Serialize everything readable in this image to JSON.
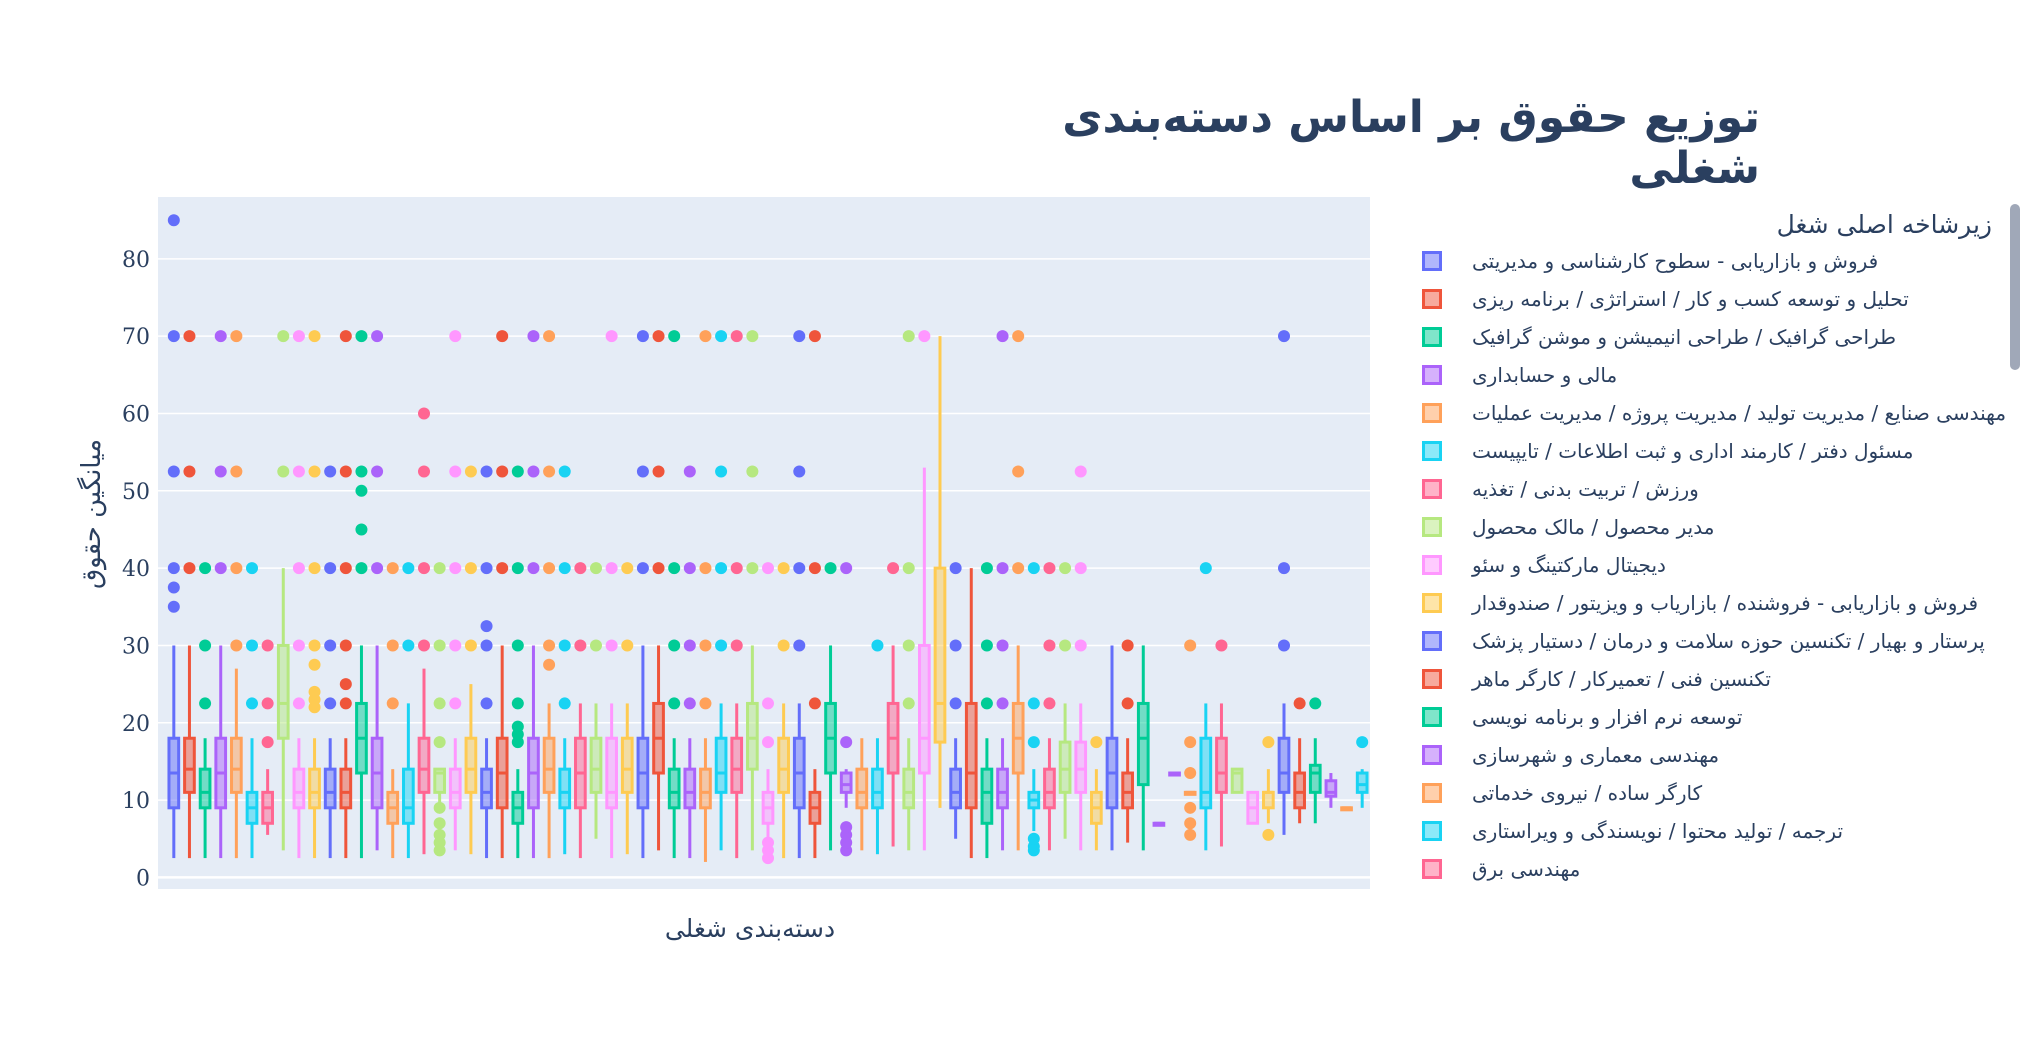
{
  "chart_data": {
    "type": "box",
    "title": "توزیع حقوق بر اساس دسته‌بندی شغلی",
    "xlabel": "دسته‌بندی شغلی",
    "ylabel": "میانگین حقوق",
    "ylim": [
      -1.5,
      88
    ],
    "yticks": [
      0,
      10,
      20,
      30,
      40,
      50,
      60,
      70,
      80
    ],
    "grid": true,
    "legend_title": "زیرشاخه اصلی شغل",
    "legend_placement": "right",
    "colors": [
      "#636efa",
      "#ef553b",
      "#00cc96",
      "#ab63fa",
      "#ffa15a",
      "#19d3f3",
      "#ff6692",
      "#b6e880",
      "#ff97ff",
      "#fecb52"
    ],
    "series": [
      {
        "name": "فروش و بازاریابی - سطوح کارشناسی و مدیریتی",
        "color": "#636efa"
      },
      {
        "name": "تحلیل و توسعه کسب و کار / استراتژی / برنامه ریزی",
        "color": "#ef553b"
      },
      {
        "name": "طراحی گرافیک / طراحی انیمیشن و موشن گرافیک",
        "color": "#00cc96"
      },
      {
        "name": "مالی و حسابداری",
        "color": "#ab63fa"
      },
      {
        "name": "مهندسی صنایع / مدیریت تولید / مدیریت پروژه / مدیریت عملیات",
        "color": "#ffa15a"
      },
      {
        "name": "مسئول دفتر / کارمند اداری و ثبت اطلاعات / تایپیست",
        "color": "#19d3f3"
      },
      {
        "name": "ورزش / تربیت بدنی / تغذیه",
        "color": "#ff6692"
      },
      {
        "name": "مدیر محصول / مالک محصول",
        "color": "#b6e880"
      },
      {
        "name": "دیجیتال مارکتینگ و سئو",
        "color": "#ff97ff"
      },
      {
        "name": "فروش و بازاریابی - فروشنده / بازاریاب و ویزیتور / صندوقدار",
        "color": "#fecb52"
      },
      {
        "name": "پرستار و بهیار / تکنسین حوزه سلامت و درمان / دستیار پزشک",
        "color": "#636efa"
      },
      {
        "name": "تکنسین فنی / تعمیرکار / کارگر ماهر",
        "color": "#ef553b"
      },
      {
        "name": "توسعه نرم افزار و برنامه نویسی",
        "color": "#00cc96"
      },
      {
        "name": "مهندسی معماری و شهرسازی",
        "color": "#ab63fa"
      },
      {
        "name": "کارگر ساده / نیروی خدماتی",
        "color": "#ffa15a"
      },
      {
        "name": "ترجمه / تولید محتوا / نویسندگی و ویراستاری",
        "color": "#19d3f3"
      },
      {
        "name": "مهندسی برق",
        "color": "#ff6692"
      }
    ],
    "boxes": [
      {
        "c": 0,
        "min": 2.5,
        "q1": 9,
        "med": 13.5,
        "q3": 18,
        "max": 30,
        "out": [
          35,
          37.5,
          40,
          52.5,
          70,
          85
        ]
      },
      {
        "c": 1,
        "min": 2.5,
        "q1": 11,
        "med": 14,
        "q3": 18,
        "max": 30,
        "out": [
          40,
          52.5,
          70
        ]
      },
      {
        "c": 2,
        "min": 2.5,
        "q1": 9,
        "med": 11,
        "q3": 14,
        "max": 18,
        "out": [
          22.5,
          30,
          40
        ]
      },
      {
        "c": 3,
        "min": 2.5,
        "q1": 9,
        "med": 13.5,
        "q3": 18,
        "max": 30,
        "out": [
          40,
          52.5,
          70
        ]
      },
      {
        "c": 4,
        "min": 2.5,
        "q1": 11,
        "med": 14,
        "q3": 18,
        "max": 27,
        "out": [
          30,
          40,
          52.5,
          70
        ]
      },
      {
        "c": 5,
        "min": 2.5,
        "q1": 7,
        "med": 9,
        "q3": 11,
        "max": 18,
        "out": [
          22.5,
          30,
          40
        ]
      },
      {
        "c": 6,
        "min": 5.5,
        "q1": 7,
        "med": 9,
        "q3": 11,
        "max": 14,
        "out": [
          17.5,
          22.5,
          30
        ]
      },
      {
        "c": 7,
        "min": 3.5,
        "q1": 18,
        "med": 22.5,
        "q3": 30,
        "max": 40,
        "out": [
          52.5,
          70
        ]
      },
      {
        "c": 8,
        "min": 2.5,
        "q1": 9,
        "med": 11,
        "q3": 14,
        "max": 18,
        "out": [
          22.5,
          30,
          40,
          52.5,
          70
        ]
      },
      {
        "c": 9,
        "min": 2.5,
        "q1": 9,
        "med": 11,
        "q3": 14,
        "max": 18,
        "out": [
          22,
          23,
          24,
          27.5,
          30,
          40,
          52.5,
          70
        ]
      },
      {
        "c": 0,
        "min": 2.5,
        "q1": 9,
        "med": 11,
        "q3": 14,
        "max": 18,
        "out": [
          22.5,
          30,
          40,
          52.5
        ]
      },
      {
        "c": 1,
        "min": 2.5,
        "q1": 9,
        "med": 11,
        "q3": 14,
        "max": 18,
        "out": [
          22.5,
          25,
          30,
          40,
          52.5,
          70
        ]
      },
      {
        "c": 2,
        "min": 2.5,
        "q1": 13.5,
        "med": 18,
        "q3": 22.5,
        "max": 30,
        "out": [
          40,
          45,
          50,
          52.5,
          70
        ]
      },
      {
        "c": 3,
        "min": 3.5,
        "q1": 9,
        "med": 13.5,
        "q3": 18,
        "max": 30,
        "out": [
          40,
          52.5,
          70
        ]
      },
      {
        "c": 4,
        "min": 2.5,
        "q1": 7,
        "med": 9,
        "q3": 11,
        "max": 14,
        "out": [
          22.5,
          30,
          40
        ]
      },
      {
        "c": 5,
        "min": 2.5,
        "q1": 7,
        "med": 9,
        "q3": 14,
        "max": 22.5,
        "out": [
          30,
          40
        ]
      },
      {
        "c": 6,
        "min": 3,
        "q1": 11,
        "med": 14,
        "q3": 18,
        "max": 27,
        "out": [
          30,
          40,
          52.5,
          60
        ]
      },
      {
        "c": 7,
        "min": 9,
        "q1": 11,
        "med": 13.5,
        "q3": 14,
        "max": 14,
        "out": [
          3.5,
          4.5,
          5.5,
          7,
          9,
          17.5,
          22.5,
          30,
          40
        ]
      },
      {
        "c": 8,
        "min": 3.5,
        "q1": 9,
        "med": 11,
        "q3": 14,
        "max": 18,
        "out": [
          22.5,
          30,
          40,
          52.5,
          70
        ]
      },
      {
        "c": 9,
        "min": 3,
        "q1": 11,
        "med": 14,
        "q3": 18,
        "max": 25,
        "out": [
          30,
          40,
          52.5
        ]
      },
      {
        "c": 0,
        "min": 2.5,
        "q1": 9,
        "med": 11,
        "q3": 14,
        "max": 18,
        "out": [
          22.5,
          30,
          32.5,
          40,
          52.5
        ]
      },
      {
        "c": 1,
        "min": 2.5,
        "q1": 9,
        "med": 13.5,
        "q3": 18,
        "max": 30,
        "out": [
          40,
          52.5,
          70
        ]
      },
      {
        "c": 2,
        "min": 2.5,
        "q1": 7,
        "med": 9,
        "q3": 11,
        "max": 14,
        "out": [
          17.5,
          18.5,
          19.5,
          22.5,
          30,
          40,
          52.5
        ]
      },
      {
        "c": 3,
        "min": 2.5,
        "q1": 9,
        "med": 13.5,
        "q3": 18,
        "max": 30,
        "out": [
          40,
          52.5,
          70
        ]
      },
      {
        "c": 4,
        "min": 2.5,
        "q1": 11,
        "med": 14,
        "q3": 18,
        "max": 22.5,
        "out": [
          27.5,
          30,
          40,
          52.5,
          70
        ]
      },
      {
        "c": 5,
        "min": 3,
        "q1": 9,
        "med": 11,
        "q3": 14,
        "max": 18,
        "out": [
          22.5,
          30,
          40,
          52.5
        ]
      },
      {
        "c": 6,
        "min": 2.5,
        "q1": 9,
        "med": 13.5,
        "q3": 18,
        "max": 22.5,
        "out": [
          30,
          40
        ]
      },
      {
        "c": 7,
        "min": 5,
        "q1": 11,
        "med": 14,
        "q3": 18,
        "max": 22.5,
        "out": [
          30,
          40
        ]
      },
      {
        "c": 8,
        "min": 2.5,
        "q1": 9,
        "med": 11,
        "q3": 18,
        "max": 22.5,
        "out": [
          30,
          40,
          70
        ]
      },
      {
        "c": 9,
        "min": 3,
        "q1": 11,
        "med": 14,
        "q3": 18,
        "max": 22.5,
        "out": [
          30,
          40
        ]
      },
      {
        "c": 0,
        "min": 2.5,
        "q1": 9,
        "med": 13.5,
        "q3": 18,
        "max": 30,
        "out": [
          40,
          52.5,
          70
        ]
      },
      {
        "c": 1,
        "min": 3.5,
        "q1": 13.5,
        "med": 18,
        "q3": 22.5,
        "max": 30,
        "out": [
          40,
          52.5,
          70
        ]
      },
      {
        "c": 2,
        "min": 2.5,
        "q1": 9,
        "med": 11,
        "q3": 14,
        "max": 18,
        "out": [
          22.5,
          30,
          40,
          70
        ]
      },
      {
        "c": 3,
        "min": 2.5,
        "q1": 9,
        "med": 11,
        "q3": 14,
        "max": 18,
        "out": [
          22.5,
          30,
          40,
          52.5
        ]
      },
      {
        "c": 4,
        "min": 2,
        "q1": 9,
        "med": 11,
        "q3": 14,
        "max": 18,
        "out": [
          22.5,
          30,
          40,
          70
        ]
      },
      {
        "c": 5,
        "min": 3.5,
        "q1": 11,
        "med": 13.5,
        "q3": 18,
        "max": 22.5,
        "out": [
          30,
          40,
          52.5,
          70
        ]
      },
      {
        "c": 6,
        "min": 2.5,
        "q1": 11,
        "med": 14,
        "q3": 18,
        "max": 22.5,
        "out": [
          30,
          40,
          70
        ]
      },
      {
        "c": 7,
        "min": 3.5,
        "q1": 14,
        "med": 18,
        "q3": 22.5,
        "max": 30,
        "out": [
          40,
          52.5,
          70
        ]
      },
      {
        "c": 8,
        "min": 3.5,
        "q1": 7,
        "med": 9,
        "q3": 11,
        "max": 14,
        "out": [
          2.5,
          3.5,
          4.5,
          17.5,
          22.5,
          40
        ]
      },
      {
        "c": 9,
        "min": 2.5,
        "q1": 11,
        "med": 14,
        "q3": 18,
        "max": 22.5,
        "out": [
          30,
          40
        ]
      },
      {
        "c": 0,
        "min": 2.5,
        "q1": 9,
        "med": 13.5,
        "q3": 18,
        "max": 22.5,
        "out": [
          30,
          40,
          52.5,
          70
        ]
      },
      {
        "c": 1,
        "min": 2.5,
        "q1": 7,
        "med": 9,
        "q3": 11,
        "max": 14,
        "out": [
          22.5,
          40,
          70
        ]
      },
      {
        "c": 2,
        "min": 3.5,
        "q1": 13.5,
        "med": 18,
        "q3": 22.5,
        "max": 30,
        "out": [
          40
        ]
      },
      {
        "c": 3,
        "min": 9,
        "q1": 11,
        "med": 12,
        "q3": 13.5,
        "max": 14,
        "out": [
          3.5,
          4.5,
          5.5,
          6.5,
          17.5,
          40
        ]
      },
      {
        "c": 4,
        "min": 3.5,
        "q1": 9,
        "med": 11,
        "q3": 14,
        "max": 18,
        "out": []
      },
      {
        "c": 5,
        "min": 3,
        "q1": 9,
        "med": 11,
        "q3": 14,
        "max": 18,
        "out": [
          30
        ]
      },
      {
        "c": 6,
        "min": 4,
        "q1": 13.5,
        "med": 18,
        "q3": 22.5,
        "max": 30,
        "out": [
          40
        ]
      },
      {
        "c": 7,
        "min": 3.5,
        "q1": 9,
        "med": 11,
        "q3": 14,
        "max": 18,
        "out": [
          22.5,
          30,
          40,
          70
        ]
      },
      {
        "c": 8,
        "min": 3.5,
        "q1": 13.5,
        "med": 18,
        "q3": 30,
        "max": 53,
        "out": [
          70
        ]
      },
      {
        "c": 9,
        "min": 9,
        "q1": 17.5,
        "med": 22.5,
        "q3": 40,
        "max": 70,
        "out": []
      },
      {
        "c": 0,
        "min": 5,
        "q1": 9,
        "med": 11,
        "q3": 14,
        "max": 18,
        "out": [
          22.5,
          30,
          40
        ]
      },
      {
        "c": 1,
        "min": 2.5,
        "q1": 9,
        "med": 13.5,
        "q3": 22.5,
        "max": 40,
        "out": []
      },
      {
        "c": 2,
        "min": 2.5,
        "q1": 7,
        "med": 11,
        "q3": 14,
        "max": 18,
        "out": [
          22.5,
          30,
          40
        ]
      },
      {
        "c": 3,
        "min": 3.5,
        "q1": 9,
        "med": 11,
        "q3": 14,
        "max": 18,
        "out": [
          22.5,
          30,
          40,
          70
        ]
      },
      {
        "c": 4,
        "min": 3.5,
        "q1": 13.5,
        "med": 18,
        "q3": 22.5,
        "max": 30,
        "out": [
          40,
          52.5,
          70
        ]
      },
      {
        "c": 5,
        "min": 6,
        "q1": 9,
        "med": 10,
        "q3": 11,
        "max": 14,
        "out": [
          3.5,
          4,
          5,
          17.5,
          22.5,
          40
        ]
      },
      {
        "c": 6,
        "min": 3.5,
        "q1": 9,
        "med": 11,
        "q3": 14,
        "max": 18,
        "out": [
          22.5,
          30,
          40
        ]
      },
      {
        "c": 7,
        "min": 5,
        "q1": 11,
        "med": 14,
        "q3": 17.5,
        "max": 22.5,
        "out": [
          30,
          40
        ]
      },
      {
        "c": 8,
        "min": 3.5,
        "q1": 11,
        "med": 14,
        "q3": 17.5,
        "max": 22.5,
        "out": [
          30,
          40,
          52.5
        ]
      },
      {
        "c": 9,
        "min": 3.5,
        "q1": 7,
        "med": 9,
        "q3": 11,
        "max": 14,
        "out": [
          17.5
        ]
      },
      {
        "c": 0,
        "min": 3.5,
        "q1": 9,
        "med": 13.5,
        "q3": 18,
        "max": 30,
        "out": []
      },
      {
        "c": 1,
        "min": 4.5,
        "q1": 9,
        "med": 11,
        "q3": 13.5,
        "max": 18,
        "out": [
          22.5,
          30
        ]
      },
      {
        "c": 2,
        "min": 3.5,
        "q1": 12,
        "med": 18,
        "q3": 22.5,
        "max": 30,
        "out": []
      },
      {
        "c": 3,
        "min": 7,
        "q1": 7,
        "med": 7,
        "q3": 7,
        "max": 7,
        "out": []
      },
      {
        "c": 3,
        "min": 13.5,
        "q1": 13.5,
        "med": 13.5,
        "q3": 13.5,
        "max": 13.5,
        "out": []
      },
      {
        "c": 4,
        "min": 11,
        "q1": 11,
        "med": 11,
        "q3": 11,
        "max": 11,
        "out": [
          5.5,
          7,
          9,
          13.5,
          17.5,
          30
        ]
      },
      {
        "c": 5,
        "min": 3.5,
        "q1": 9,
        "med": 11,
        "q3": 18,
        "max": 22.5,
        "out": [
          40
        ]
      },
      {
        "c": 6,
        "min": 4,
        "q1": 11,
        "med": 13.5,
        "q3": 18,
        "max": 22.5,
        "out": [
          30
        ]
      },
      {
        "c": 7,
        "min": 11,
        "q1": 11,
        "med": 13.5,
        "q3": 14,
        "max": 14,
        "out": []
      },
      {
        "c": 8,
        "min": 7,
        "q1": 7,
        "med": 9,
        "q3": 11,
        "max": 11,
        "out": []
      },
      {
        "c": 9,
        "min": 7,
        "q1": 9,
        "med": 11,
        "q3": 11,
        "max": 14,
        "out": [
          5.5,
          17.5
        ]
      },
      {
        "c": 0,
        "min": 5.5,
        "q1": 11,
        "med": 13.5,
        "q3": 18,
        "max": 22.5,
        "out": [
          30,
          40,
          70
        ]
      },
      {
        "c": 1,
        "min": 7,
        "q1": 9,
        "med": 11,
        "q3": 13.5,
        "max": 18,
        "out": [
          22.5
        ]
      },
      {
        "c": 2,
        "min": 7,
        "q1": 11,
        "med": 13.5,
        "q3": 14.5,
        "max": 18,
        "out": [
          22.5
        ]
      },
      {
        "c": 3,
        "min": 9,
        "q1": 10.5,
        "med": 11,
        "q3": 12.5,
        "max": 13.5,
        "out": []
      },
      {
        "c": 4,
        "min": 9,
        "q1": 9,
        "med": 9,
        "q3": 9,
        "max": 9,
        "out": []
      },
      {
        "c": 5,
        "min": 9,
        "q1": 11,
        "med": 12,
        "q3": 13.5,
        "max": 14,
        "out": [
          17.5
        ]
      }
    ]
  }
}
